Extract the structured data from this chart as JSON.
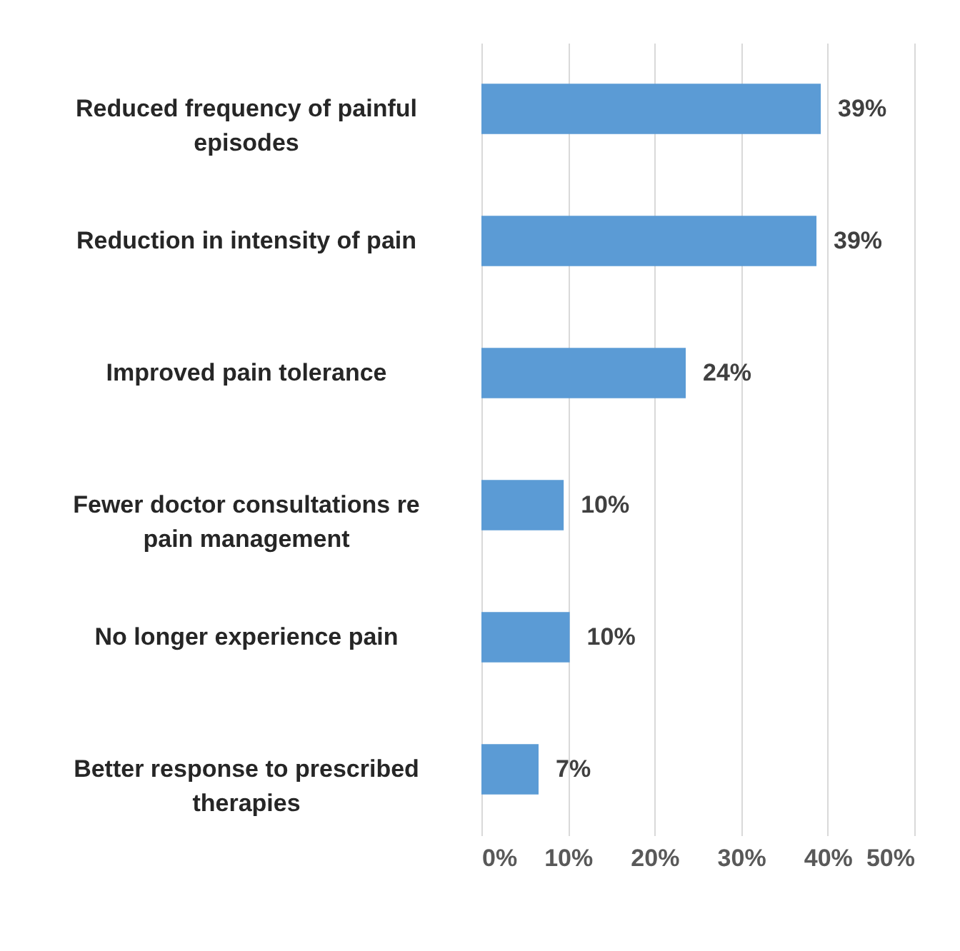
{
  "chart_data": {
    "type": "bar",
    "orientation": "horizontal",
    "categories": [
      "Reduced frequency of painful episodes",
      "Reduction in intensity of pain",
      "Improved pain tolerance",
      "Fewer doctor consultations re pain management",
      "No longer experience pain",
      "Better response to prescribed therapies"
    ],
    "values": [
      39.2,
      38.7,
      23.6,
      9.5,
      10.2,
      6.6
    ],
    "value_labels": [
      "39%",
      "39%",
      "24%",
      "10%",
      "10%",
      "7%"
    ],
    "color": "#5b9bd5",
    "xlim": [
      0,
      50
    ],
    "xticks": [
      {
        "value": 0,
        "label": "0%"
      },
      {
        "value": 10,
        "label": "10%"
      },
      {
        "value": 20,
        "label": "20%"
      },
      {
        "value": 30,
        "label": "30%"
      },
      {
        "value": 40,
        "label": "40%"
      },
      {
        "value": 50,
        "label": "50%"
      }
    ],
    "grid": "x"
  }
}
